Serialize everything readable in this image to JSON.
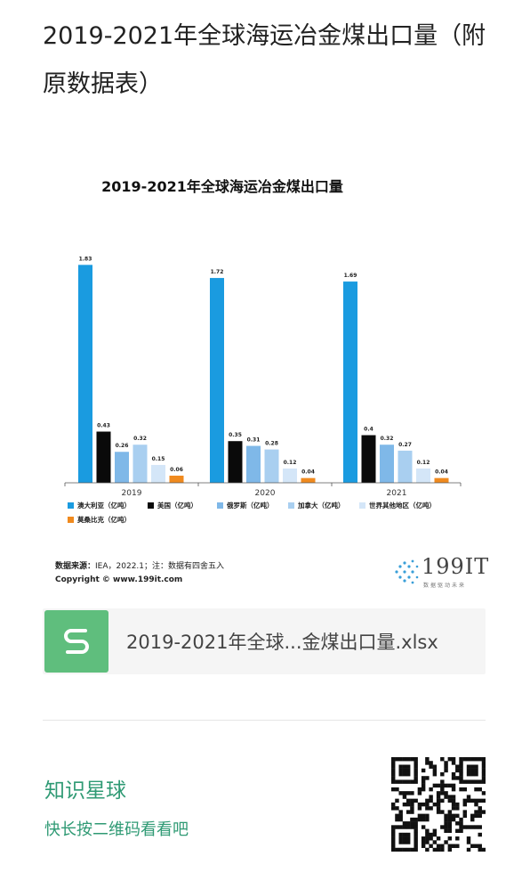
{
  "post": {
    "title": "2019-2021年全球海运冶金煤出口量（附原数据表）"
  },
  "chart_data": {
    "type": "bar",
    "title": "2019-2021年全球海运冶金煤出口量",
    "categories": [
      "2019",
      "2020",
      "2021"
    ],
    "series": [
      {
        "name": "澳大利亚（亿吨）",
        "color": "#1a9be0",
        "values": [
          1.83,
          1.72,
          1.69
        ]
      },
      {
        "name": "美国（亿吨）",
        "color": "#0a0a0a",
        "values": [
          0.43,
          0.35,
          0.4
        ]
      },
      {
        "name": "俄罗斯（亿吨）",
        "color": "#7fb8e8",
        "values": [
          0.26,
          0.31,
          0.32
        ]
      },
      {
        "name": "加拿大（亿吨）",
        "color": "#a9cff0",
        "values": [
          0.32,
          0.28,
          0.27
        ]
      },
      {
        "name": "世界其他地区（亿吨）",
        "color": "#d4e6f8",
        "values": [
          0.15,
          0.12,
          0.12
        ]
      },
      {
        "name": "莫桑比克（亿吨）",
        "color": "#f08a1e",
        "values": [
          0.06,
          0.04,
          0.04
        ]
      }
    ],
    "ylim": [
      0,
      1.9
    ],
    "grid": false,
    "legend_position": "bottom"
  },
  "source": {
    "label": "数据来源：",
    "text": "IEA，2022.1；注：数据有四舍五入",
    "copyright": "Copyright © www.199it.com"
  },
  "logo": {
    "text": "199IT",
    "sub": "数据驱动未来"
  },
  "file": {
    "icon": "wps-spreadsheet-icon",
    "icon_letter": "S",
    "icon_color": "#5fbe7d",
    "name": "2019-2021年全球...金煤出口量.xlsx"
  },
  "planet": {
    "title": "知识星球",
    "subtitle": "快长按二维码看看吧",
    "accent": "#2f9a74"
  }
}
